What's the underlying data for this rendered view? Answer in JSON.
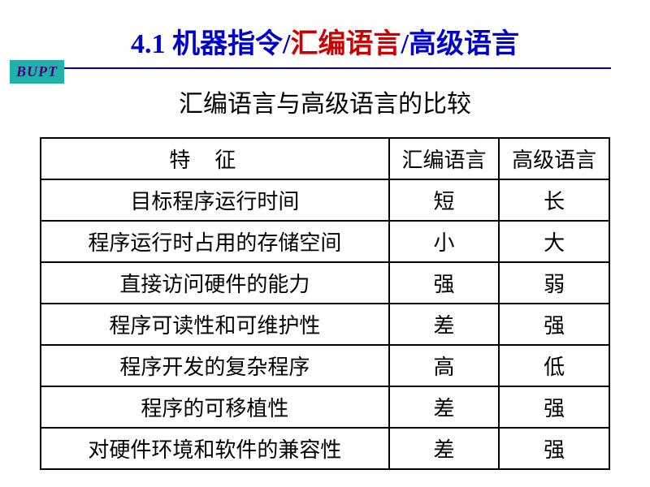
{
  "logo": "BUPT",
  "title": {
    "sectionNumber": "4.1 ",
    "part1": "机器指令",
    "sep": "/",
    "part2": "汇编语言",
    "part3": "高级语言"
  },
  "subtitle": "汇编语言与高级语言的比较",
  "colors": {
    "titleBlue": "#0000cd",
    "titleRed": "#cc0000",
    "logoBg": "#20b2aa",
    "logoText": "#4b0082",
    "border": "#000000",
    "dividerColor": "#0000cd"
  },
  "table": {
    "headers": {
      "feature": "特征",
      "asm": "汇编语言",
      "high": "高级语言"
    },
    "rows": [
      {
        "feature": "目标程序运行时间",
        "asm": "短",
        "high": "长"
      },
      {
        "feature": "程序运行时占用的存储空间",
        "asm": "小",
        "high": "大"
      },
      {
        "feature": "直接访问硬件的能力",
        "asm": "强",
        "high": "弱"
      },
      {
        "feature": "程序可读性和可维护性",
        "asm": "差",
        "high": "强"
      },
      {
        "feature": "程序开发的复杂程序",
        "asm": "高",
        "high": "低"
      },
      {
        "feature": "程序的可移植性",
        "asm": "差",
        "high": "强"
      },
      {
        "feature": "对硬件环境和软件的兼容性",
        "asm": "差",
        "high": "强"
      }
    ]
  },
  "typography": {
    "titleFontSize": 34,
    "subtitleFontSize": 30,
    "tableFontSize": 26
  },
  "layout": {
    "tableWidth": 702,
    "featureColWidth": 430,
    "langColWidth": 136
  }
}
